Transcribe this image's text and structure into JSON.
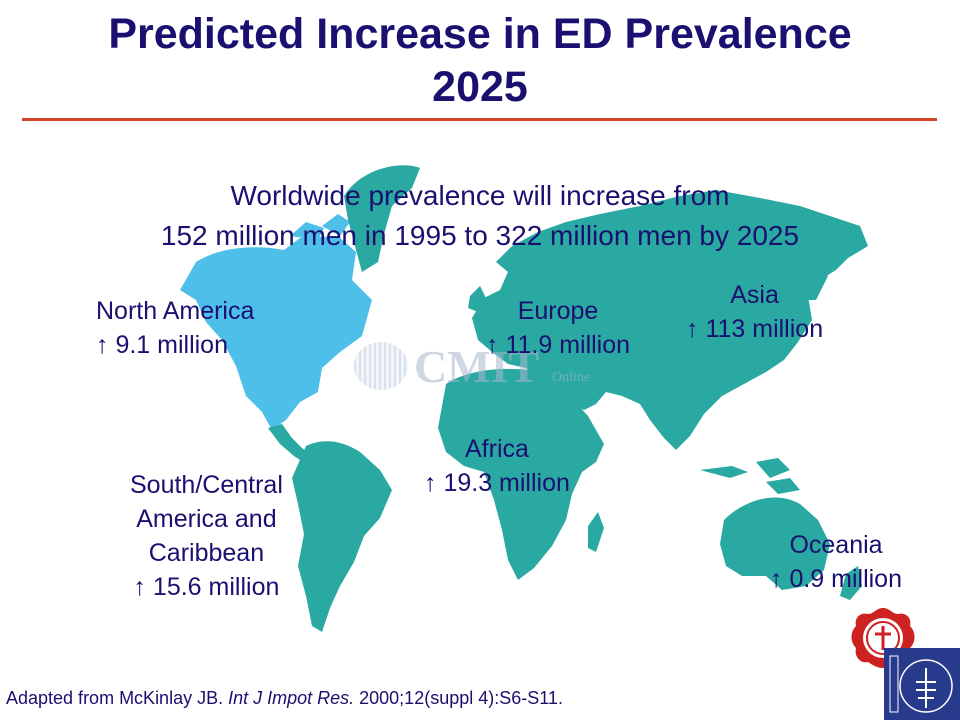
{
  "title": {
    "line1": "Predicted Increase in ED Prevalence",
    "line2": "2025"
  },
  "subtitle": {
    "line1": "Worldwide prevalence will increase from",
    "line2": "152 million men in 1995 to 322 million men by 2025"
  },
  "regions": {
    "north_america": {
      "name": "North America",
      "value": "↑ 9.1 million"
    },
    "south_america": {
      "name_line1": "South/Central",
      "name_line2": "America and",
      "name_line3": "Caribbean",
      "value": "↑ 15.6 million"
    },
    "europe": {
      "name": "Europe",
      "value": "↑ 11.9 million"
    },
    "africa": {
      "name": "Africa",
      "value": "↑ 19.3 million"
    },
    "asia": {
      "name": "Asia",
      "value": "↑ 113 million"
    },
    "oceania": {
      "name": "Oceania",
      "value": "↑ 0.9 million"
    }
  },
  "watermark": {
    "text": "CMIT",
    "sub": "Online"
  },
  "citation": {
    "prefix": "Adapted from McKinlay JB. ",
    "journal": "Int J Impot Res.",
    "suffix": " 2000;12(suppl 4):S6-S11."
  },
  "colors": {
    "title": "#1a1070",
    "rule": "#d2452a",
    "north_america_fill": "#4dbfe8",
    "land_fill": "#2aa8a2",
    "seal": "#cc2222",
    "badge": "#283a8c"
  },
  "icons": [
    "hospital-seal-icon",
    "university-badge-icon"
  ]
}
